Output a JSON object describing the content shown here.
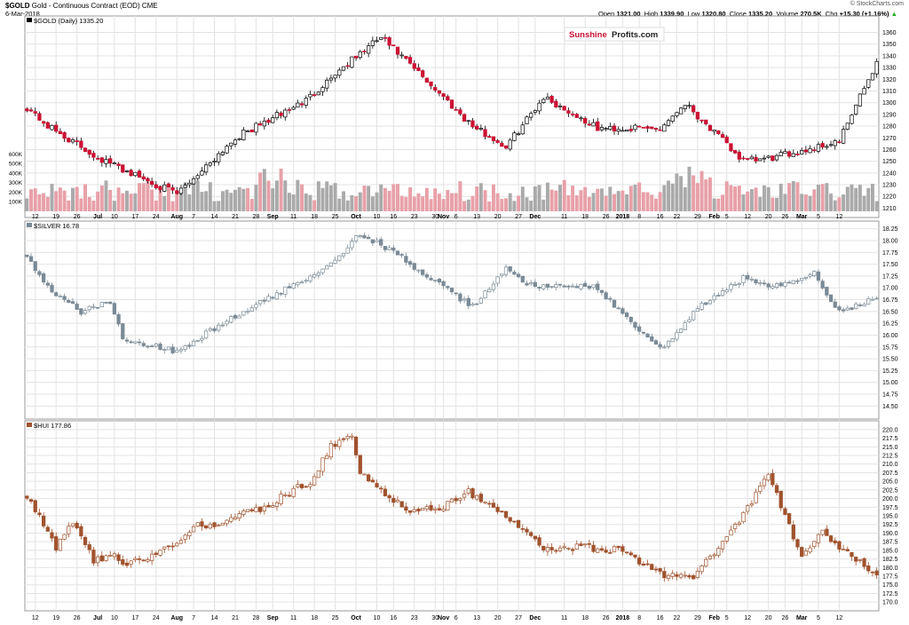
{
  "header": {
    "symbol": "$GOLD",
    "description": "Gold - Continuous Contract (EOD)",
    "exchange": "CME",
    "date": "6-Mar-2018",
    "credit": "© StockCharts.com",
    "quote": {
      "open_label": "Open",
      "open": "1321.00",
      "high_label": "High",
      "high": "1339.90",
      "low_label": "Low",
      "low": "1320.80",
      "close_label": "Close",
      "close": "1335.20",
      "volume_label": "Volume",
      "volume": "270.5K",
      "chg_label": "Chg",
      "chg": "+15.30 (+1.16%)"
    }
  },
  "watermark": {
    "part1": "Sunshine",
    "part2": "Profits.com"
  },
  "colors": {
    "up": "#000000",
    "down": "#cc1133",
    "vol_up": "#aaaaaa",
    "vol_down": "#e8a0a8",
    "silver": "#7a8a96",
    "hui": "#a0522d",
    "grid": "#e3e3e3"
  },
  "chart_data": [
    {
      "type": "line",
      "title": "$GOLD (Daily) 1335.20",
      "legend_swatch": "candlestick",
      "ylim": [
        1205,
        1368
      ],
      "yticks": [
        1210,
        1220,
        1230,
        1240,
        1250,
        1260,
        1270,
        1280,
        1290,
        1300,
        1310,
        1320,
        1330,
        1340,
        1350,
        1360
      ],
      "volume_ticks": [
        "600K",
        "500K",
        "400K",
        "300K",
        "200K",
        "100K"
      ],
      "volume_max": 650,
      "anchors_x": [
        0,
        5,
        17,
        36,
        50,
        67,
        74,
        85,
        100,
        107,
        115,
        124,
        137,
        142,
        152,
        158,
        164,
        172,
        178,
        195,
        204
      ],
      "anchors_y": [
        1296,
        1280,
        1253,
        1222,
        1270,
        1302,
        1325,
        1356,
        1305,
        1280,
        1262,
        1305,
        1278,
        1278,
        1278,
        1300,
        1278,
        1250,
        1252,
        1267,
        1335
      ],
      "close_last": 1335.2
    },
    {
      "type": "line",
      "title": "$SILVER 16.78",
      "ylim": [
        14.3,
        18.3
      ],
      "yticks": [
        14.5,
        14.75,
        15.0,
        15.25,
        15.5,
        15.75,
        16.0,
        16.25,
        16.5,
        16.75,
        17.0,
        17.25,
        17.5,
        17.75,
        18.0,
        18.25
      ],
      "anchors_x": [
        0,
        6,
        13,
        20,
        23,
        36,
        48,
        66,
        74,
        80,
        89,
        100,
        107,
        115,
        122,
        136,
        144,
        152,
        158,
        160,
        172,
        178,
        189,
        195,
        204
      ],
      "anchors_y": [
        17.65,
        16.9,
        16.5,
        16.7,
        15.95,
        15.65,
        16.3,
        17.15,
        17.6,
        18.15,
        17.7,
        17.0,
        16.6,
        17.4,
        17.0,
        17.05,
        16.35,
        15.7,
        16.2,
        16.5,
        17.2,
        17.0,
        17.3,
        16.5,
        16.78
      ],
      "close_last": 16.78
    },
    {
      "type": "line",
      "title": "$HUI 177.86",
      "ylim": [
        168.5,
        221
      ],
      "yticks": [
        170.0,
        172.5,
        175.0,
        177.5,
        180.0,
        182.5,
        185.0,
        187.5,
        190.0,
        192.5,
        195.0,
        197.5,
        200.0,
        202.5,
        205.0,
        207.5,
        210.0,
        212.5,
        215.0,
        217.5,
        220.0
      ],
      "anchors_x": [
        0,
        7,
        11,
        16,
        21,
        23,
        36,
        40,
        46,
        56,
        68,
        73,
        78,
        80,
        87,
        93,
        100,
        106,
        115,
        124,
        133,
        142,
        152,
        160,
        172,
        178,
        186,
        191,
        204
      ],
      "anchors_y": [
        201,
        186,
        193,
        182,
        184,
        180,
        187,
        192,
        193,
        197,
        205,
        215,
        219,
        208,
        200,
        196,
        198,
        202,
        195,
        185,
        186,
        185,
        178,
        177,
        195,
        207,
        183,
        190,
        177.86
      ],
      "close_last": 177.86
    }
  ],
  "x_axis": {
    "labels": [
      {
        "t": "12",
        "i": 2
      },
      {
        "t": "19",
        "i": 7
      },
      {
        "t": "26",
        "i": 12
      },
      {
        "t": "Jul",
        "i": 17,
        "bold": true
      },
      {
        "t": "10",
        "i": 21
      },
      {
        "t": "17",
        "i": 26
      },
      {
        "t": "24",
        "i": 31
      },
      {
        "t": "Aug",
        "i": 36,
        "bold": true
      },
      {
        "t": "7",
        "i": 40
      },
      {
        "t": "14",
        "i": 45
      },
      {
        "t": "21",
        "i": 50
      },
      {
        "t": "28",
        "i": 55
      },
      {
        "t": "Sep",
        "i": 59,
        "bold": true
      },
      {
        "t": "11",
        "i": 64
      },
      {
        "t": "18",
        "i": 69
      },
      {
        "t": "25",
        "i": 74
      },
      {
        "t": "Oct",
        "i": 79,
        "bold": true
      },
      {
        "t": "10",
        "i": 84
      },
      {
        "t": "16",
        "i": 88
      },
      {
        "t": "23",
        "i": 93
      },
      {
        "t": "30",
        "i": 98
      },
      {
        "t": "Nov",
        "i": 100,
        "bold": true
      },
      {
        "t": "6",
        "i": 103
      },
      {
        "t": "13",
        "i": 108
      },
      {
        "t": "20",
        "i": 113
      },
      {
        "t": "27",
        "i": 118
      },
      {
        "t": "Dec",
        "i": 122,
        "bold": true
      },
      {
        "t": "11",
        "i": 129
      },
      {
        "t": "18",
        "i": 134
      },
      {
        "t": "26",
        "i": 139
      },
      {
        "t": "2018",
        "i": 143,
        "bold": true
      },
      {
        "t": "8",
        "i": 147
      },
      {
        "t": "16",
        "i": 152
      },
      {
        "t": "22",
        "i": 156
      },
      {
        "t": "29",
        "i": 161
      },
      {
        "t": "Feb",
        "i": 165,
        "bold": true
      },
      {
        "t": "5",
        "i": 168
      },
      {
        "t": "12",
        "i": 173
      },
      {
        "t": "20",
        "i": 178
      },
      {
        "t": "26",
        "i": 182
      },
      {
        "t": "Mar",
        "i": 186,
        "bold": true
      },
      {
        "t": "5",
        "i": 190
      },
      {
        "t": "12",
        "i": 195
      }
    ],
    "count": 205
  }
}
